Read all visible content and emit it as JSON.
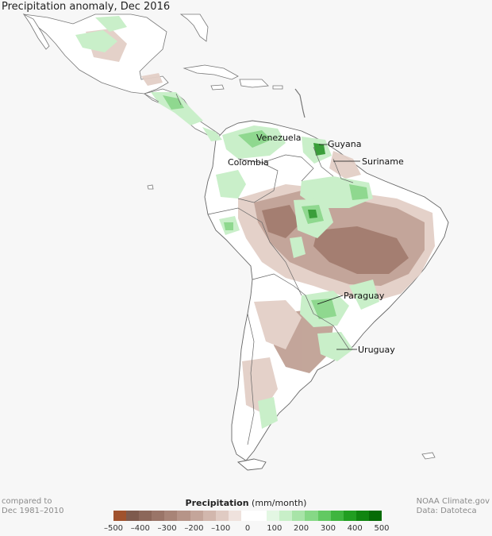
{
  "title": "Precipitation anomaly, Dec 2016",
  "labels": {
    "venezuela": "Venezuela",
    "guyana": "Guyana",
    "colombia": "Colombia",
    "suriname": "Suriname",
    "paraguay": "Paraguay",
    "uruguay": "Uruguay"
  },
  "footer": {
    "compared_line1": "compared to",
    "compared_line2": "Dec 1981–2010",
    "source_line1": "NOAA Climate.gov",
    "source_line2": "Data: Datoteca"
  },
  "legend": {
    "title_bold": "Precipitation",
    "title_unit": "(mm/month)",
    "ticks": [
      "–500",
      "–400",
      "–300",
      "–200",
      "–100",
      "0",
      "100",
      "200",
      "300",
      "400",
      "500"
    ],
    "colors": [
      "#a0522d",
      "#7e5a4d",
      "#8c675a",
      "#9a7568",
      "#a88477",
      "#b69488",
      "#c4a59a",
      "#d2b7ad",
      "#e0cbc3",
      "#efe2dd",
      "#ffffff",
      "#ffffff",
      "#e3f7e3",
      "#c8efc8",
      "#a8e4a8",
      "#86d886",
      "#62c962",
      "#3fb53f",
      "#219e21",
      "#108510",
      "#066b06"
    ]
  },
  "map_colors": {
    "land": "#ffffff",
    "ocean": "#f7f7f7",
    "border": "#666666",
    "dry_strong": "#a0786a",
    "dry_mid": "#c0a195",
    "dry_light": "#e3cfc7",
    "wet_light": "#c9efc9",
    "wet_mid": "#8fd88f",
    "wet_strong": "#3a9e3a"
  }
}
